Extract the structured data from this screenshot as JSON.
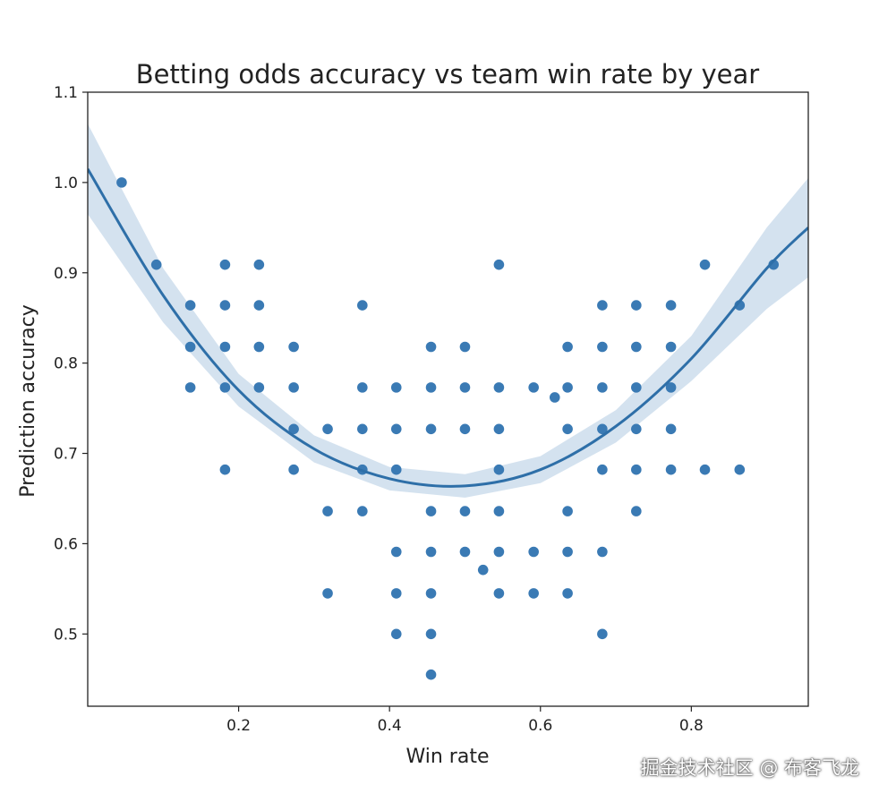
{
  "chart_data": {
    "type": "scatter",
    "title": "Betting odds accuracy vs team win rate by year",
    "xlabel": "Win rate",
    "ylabel": "Prediction accuracy",
    "xlim": [
      0.0,
      0.955
    ],
    "ylim": [
      0.42,
      1.1
    ],
    "xticks": [
      0.2,
      0.4,
      0.6,
      0.8
    ],
    "xtick_labels": [
      "0.2",
      "0.4",
      "0.6",
      "0.8"
    ],
    "yticks": [
      0.5,
      0.6,
      0.7,
      0.8,
      0.9,
      1.0,
      1.1
    ],
    "ytick_labels": [
      "0.5",
      "0.6",
      "0.7",
      "0.8",
      "0.9",
      "1.0",
      "1.1"
    ],
    "grid": false,
    "point_color": "#3a7ab4",
    "fit_color": "#2e6fa8",
    "band_color": "#c6d8ea",
    "points": [
      [
        0.045,
        1.0
      ],
      [
        0.091,
        0.909
      ],
      [
        0.136,
        0.864
      ],
      [
        0.136,
        0.818
      ],
      [
        0.136,
        0.773
      ],
      [
        0.182,
        0.909
      ],
      [
        0.182,
        0.864
      ],
      [
        0.182,
        0.818
      ],
      [
        0.182,
        0.773
      ],
      [
        0.182,
        0.682
      ],
      [
        0.227,
        0.909
      ],
      [
        0.227,
        0.864
      ],
      [
        0.227,
        0.818
      ],
      [
        0.227,
        0.773
      ],
      [
        0.273,
        0.818
      ],
      [
        0.273,
        0.773
      ],
      [
        0.273,
        0.727
      ],
      [
        0.273,
        0.682
      ],
      [
        0.318,
        0.727
      ],
      [
        0.318,
        0.636
      ],
      [
        0.318,
        0.545
      ],
      [
        0.364,
        0.864
      ],
      [
        0.364,
        0.773
      ],
      [
        0.364,
        0.727
      ],
      [
        0.364,
        0.682
      ],
      [
        0.364,
        0.636
      ],
      [
        0.409,
        0.773
      ],
      [
        0.409,
        0.727
      ],
      [
        0.409,
        0.682
      ],
      [
        0.409,
        0.591
      ],
      [
        0.409,
        0.545
      ],
      [
        0.409,
        0.5
      ],
      [
        0.455,
        0.818
      ],
      [
        0.455,
        0.773
      ],
      [
        0.455,
        0.727
      ],
      [
        0.455,
        0.636
      ],
      [
        0.455,
        0.591
      ],
      [
        0.455,
        0.545
      ],
      [
        0.455,
        0.5
      ],
      [
        0.455,
        0.455
      ],
      [
        0.5,
        0.818
      ],
      [
        0.5,
        0.773
      ],
      [
        0.5,
        0.727
      ],
      [
        0.5,
        0.636
      ],
      [
        0.5,
        0.591
      ],
      [
        0.524,
        0.571
      ],
      [
        0.545,
        0.909
      ],
      [
        0.545,
        0.773
      ],
      [
        0.545,
        0.727
      ],
      [
        0.545,
        0.682
      ],
      [
        0.545,
        0.636
      ],
      [
        0.545,
        0.591
      ],
      [
        0.545,
        0.545
      ],
      [
        0.591,
        0.773
      ],
      [
        0.591,
        0.591
      ],
      [
        0.591,
        0.545
      ],
      [
        0.619,
        0.762
      ],
      [
        0.636,
        0.818
      ],
      [
        0.636,
        0.773
      ],
      [
        0.636,
        0.727
      ],
      [
        0.636,
        0.636
      ],
      [
        0.636,
        0.591
      ],
      [
        0.636,
        0.545
      ],
      [
        0.682,
        0.864
      ],
      [
        0.682,
        0.818
      ],
      [
        0.682,
        0.773
      ],
      [
        0.682,
        0.727
      ],
      [
        0.682,
        0.682
      ],
      [
        0.682,
        0.591
      ],
      [
        0.682,
        0.5
      ],
      [
        0.727,
        0.864
      ],
      [
        0.727,
        0.818
      ],
      [
        0.727,
        0.773
      ],
      [
        0.727,
        0.727
      ],
      [
        0.727,
        0.682
      ],
      [
        0.727,
        0.636
      ],
      [
        0.773,
        0.864
      ],
      [
        0.773,
        0.818
      ],
      [
        0.773,
        0.773
      ],
      [
        0.773,
        0.727
      ],
      [
        0.773,
        0.682
      ],
      [
        0.818,
        0.909
      ],
      [
        0.818,
        0.682
      ],
      [
        0.864,
        0.864
      ],
      [
        0.864,
        0.682
      ],
      [
        0.909,
        0.909
      ]
    ],
    "fit": {
      "type": "quadratic",
      "points": [
        [
          0.0,
          1.015
        ],
        [
          0.1,
          0.875
        ],
        [
          0.2,
          0.77
        ],
        [
          0.3,
          0.705
        ],
        [
          0.4,
          0.672
        ],
        [
          0.5,
          0.664
        ],
        [
          0.6,
          0.682
        ],
        [
          0.7,
          0.73
        ],
        [
          0.8,
          0.805
        ],
        [
          0.9,
          0.905
        ],
        [
          0.955,
          0.95
        ]
      ],
      "band_halfwidth": [
        0.05,
        0.03,
        0.018,
        0.015,
        0.013,
        0.013,
        0.015,
        0.018,
        0.025,
        0.045,
        0.055
      ]
    }
  },
  "watermark": "掘金技术社区 @ 布客飞龙"
}
